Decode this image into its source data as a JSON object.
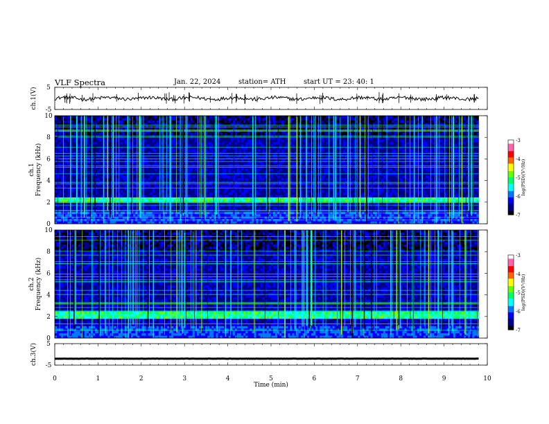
{
  "header": {
    "title": "VLF  Spectra",
    "date": "Jan. 22, 2024",
    "station": "station= ATH",
    "start": "start  UT  =   23: 40: 1"
  },
  "chart_data": [
    {
      "type": "line",
      "title": "",
      "ylabel": "ch.1(V)",
      "ylim": [
        -5,
        5
      ],
      "yticks": [
        "5",
        "-5"
      ],
      "x_range_min": [
        0,
        9.8
      ],
      "baseline_value": 0,
      "trace_color": "#000000"
    },
    {
      "type": "heatmap",
      "ylabel_channel": "ch.1",
      "ylabel": "Frequency  (kHz)",
      "ylim": [
        0,
        10
      ],
      "yticks": [
        "0",
        "2",
        "4",
        "6",
        "8",
        "10"
      ],
      "x_range_min": [
        0,
        9.8
      ],
      "colorbar": {
        "label": "log(PSD)(V²/Hz)",
        "range": [
          -7,
          -3
        ],
        "ticks": [
          "-3",
          "-4",
          "-5",
          "-6",
          "-7"
        ]
      },
      "strong_band_khz": [
        2.0,
        2.4
      ]
    },
    {
      "type": "heatmap",
      "ylabel_channel": "ch.2",
      "ylabel": "Frequency  (kHz)",
      "ylim": [
        0,
        10
      ],
      "yticks": [
        "0",
        "2",
        "4",
        "6",
        "8",
        "10"
      ],
      "x_range_min": [
        0,
        9.8
      ],
      "colorbar": {
        "label": "log(PSD)(V²/Hz)",
        "range": [
          -7,
          -3
        ],
        "ticks": [
          "-3",
          "-4",
          "-5",
          "-6",
          "-7"
        ]
      },
      "strong_band_khz": [
        1.8,
        2.4
      ]
    },
    {
      "type": "line",
      "ylabel": "ch.3(V)",
      "ylim": [
        -5,
        5
      ],
      "yticks": [
        "5",
        "-5"
      ],
      "x_range_min": [
        0,
        9.8
      ],
      "baseline_value": -2,
      "trace_color": "#000000"
    }
  ],
  "xaxis": {
    "label": "Time  (min)",
    "ticks": [
      "0",
      "1",
      "2",
      "3",
      "4",
      "5",
      "6",
      "7",
      "8",
      "9",
      "10"
    ],
    "range": [
      0,
      10
    ]
  },
  "colormap": [
    "#000000",
    "#000088",
    "#0000ff",
    "#0077ff",
    "#00ffff",
    "#00ff66",
    "#66ff00",
    "#ffff00",
    "#ff6600",
    "#ff0000",
    "#ff66aa",
    "#ffffff"
  ]
}
